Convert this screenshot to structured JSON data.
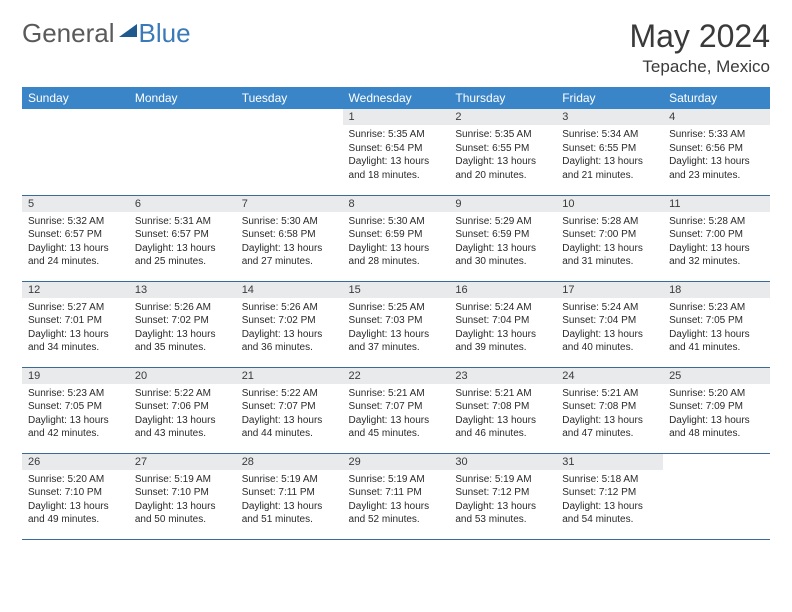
{
  "logo": {
    "textA": "General",
    "textB": "Blue"
  },
  "title": "May 2024",
  "location": "Tepache, Mexico",
  "colors": {
    "header_bg": "#3a85c7",
    "header_text": "#ffffff",
    "daynum_bg": "#e8eaec",
    "text": "#2a2a2a",
    "rule": "#3a6a9a",
    "logo_gray": "#5a5a5a",
    "logo_blue": "#3a7ab8"
  },
  "dayHeaders": [
    "Sunday",
    "Monday",
    "Tuesday",
    "Wednesday",
    "Thursday",
    "Friday",
    "Saturday"
  ],
  "weeks": [
    [
      null,
      null,
      null,
      {
        "n": "1",
        "r": "5:35 AM",
        "s": "6:54 PM",
        "d": "13 hours and 18 minutes."
      },
      {
        "n": "2",
        "r": "5:35 AM",
        "s": "6:55 PM",
        "d": "13 hours and 20 minutes."
      },
      {
        "n": "3",
        "r": "5:34 AM",
        "s": "6:55 PM",
        "d": "13 hours and 21 minutes."
      },
      {
        "n": "4",
        "r": "5:33 AM",
        "s": "6:56 PM",
        "d": "13 hours and 23 minutes."
      }
    ],
    [
      {
        "n": "5",
        "r": "5:32 AM",
        "s": "6:57 PM",
        "d": "13 hours and 24 minutes."
      },
      {
        "n": "6",
        "r": "5:31 AM",
        "s": "6:57 PM",
        "d": "13 hours and 25 minutes."
      },
      {
        "n": "7",
        "r": "5:30 AM",
        "s": "6:58 PM",
        "d": "13 hours and 27 minutes."
      },
      {
        "n": "8",
        "r": "5:30 AM",
        "s": "6:59 PM",
        "d": "13 hours and 28 minutes."
      },
      {
        "n": "9",
        "r": "5:29 AM",
        "s": "6:59 PM",
        "d": "13 hours and 30 minutes."
      },
      {
        "n": "10",
        "r": "5:28 AM",
        "s": "7:00 PM",
        "d": "13 hours and 31 minutes."
      },
      {
        "n": "11",
        "r": "5:28 AM",
        "s": "7:00 PM",
        "d": "13 hours and 32 minutes."
      }
    ],
    [
      {
        "n": "12",
        "r": "5:27 AM",
        "s": "7:01 PM",
        "d": "13 hours and 34 minutes."
      },
      {
        "n": "13",
        "r": "5:26 AM",
        "s": "7:02 PM",
        "d": "13 hours and 35 minutes."
      },
      {
        "n": "14",
        "r": "5:26 AM",
        "s": "7:02 PM",
        "d": "13 hours and 36 minutes."
      },
      {
        "n": "15",
        "r": "5:25 AM",
        "s": "7:03 PM",
        "d": "13 hours and 37 minutes."
      },
      {
        "n": "16",
        "r": "5:24 AM",
        "s": "7:04 PM",
        "d": "13 hours and 39 minutes."
      },
      {
        "n": "17",
        "r": "5:24 AM",
        "s": "7:04 PM",
        "d": "13 hours and 40 minutes."
      },
      {
        "n": "18",
        "r": "5:23 AM",
        "s": "7:05 PM",
        "d": "13 hours and 41 minutes."
      }
    ],
    [
      {
        "n": "19",
        "r": "5:23 AM",
        "s": "7:05 PM",
        "d": "13 hours and 42 minutes."
      },
      {
        "n": "20",
        "r": "5:22 AM",
        "s": "7:06 PM",
        "d": "13 hours and 43 minutes."
      },
      {
        "n": "21",
        "r": "5:22 AM",
        "s": "7:07 PM",
        "d": "13 hours and 44 minutes."
      },
      {
        "n": "22",
        "r": "5:21 AM",
        "s": "7:07 PM",
        "d": "13 hours and 45 minutes."
      },
      {
        "n": "23",
        "r": "5:21 AM",
        "s": "7:08 PM",
        "d": "13 hours and 46 minutes."
      },
      {
        "n": "24",
        "r": "5:21 AM",
        "s": "7:08 PM",
        "d": "13 hours and 47 minutes."
      },
      {
        "n": "25",
        "r": "5:20 AM",
        "s": "7:09 PM",
        "d": "13 hours and 48 minutes."
      }
    ],
    [
      {
        "n": "26",
        "r": "5:20 AM",
        "s": "7:10 PM",
        "d": "13 hours and 49 minutes."
      },
      {
        "n": "27",
        "r": "5:19 AM",
        "s": "7:10 PM",
        "d": "13 hours and 50 minutes."
      },
      {
        "n": "28",
        "r": "5:19 AM",
        "s": "7:11 PM",
        "d": "13 hours and 51 minutes."
      },
      {
        "n": "29",
        "r": "5:19 AM",
        "s": "7:11 PM",
        "d": "13 hours and 52 minutes."
      },
      {
        "n": "30",
        "r": "5:19 AM",
        "s": "7:12 PM",
        "d": "13 hours and 53 minutes."
      },
      {
        "n": "31",
        "r": "5:18 AM",
        "s": "7:12 PM",
        "d": "13 hours and 54 minutes."
      },
      null
    ]
  ],
  "labels": {
    "sunrise": "Sunrise: ",
    "sunset": "Sunset: ",
    "daylight": "Daylight: "
  }
}
